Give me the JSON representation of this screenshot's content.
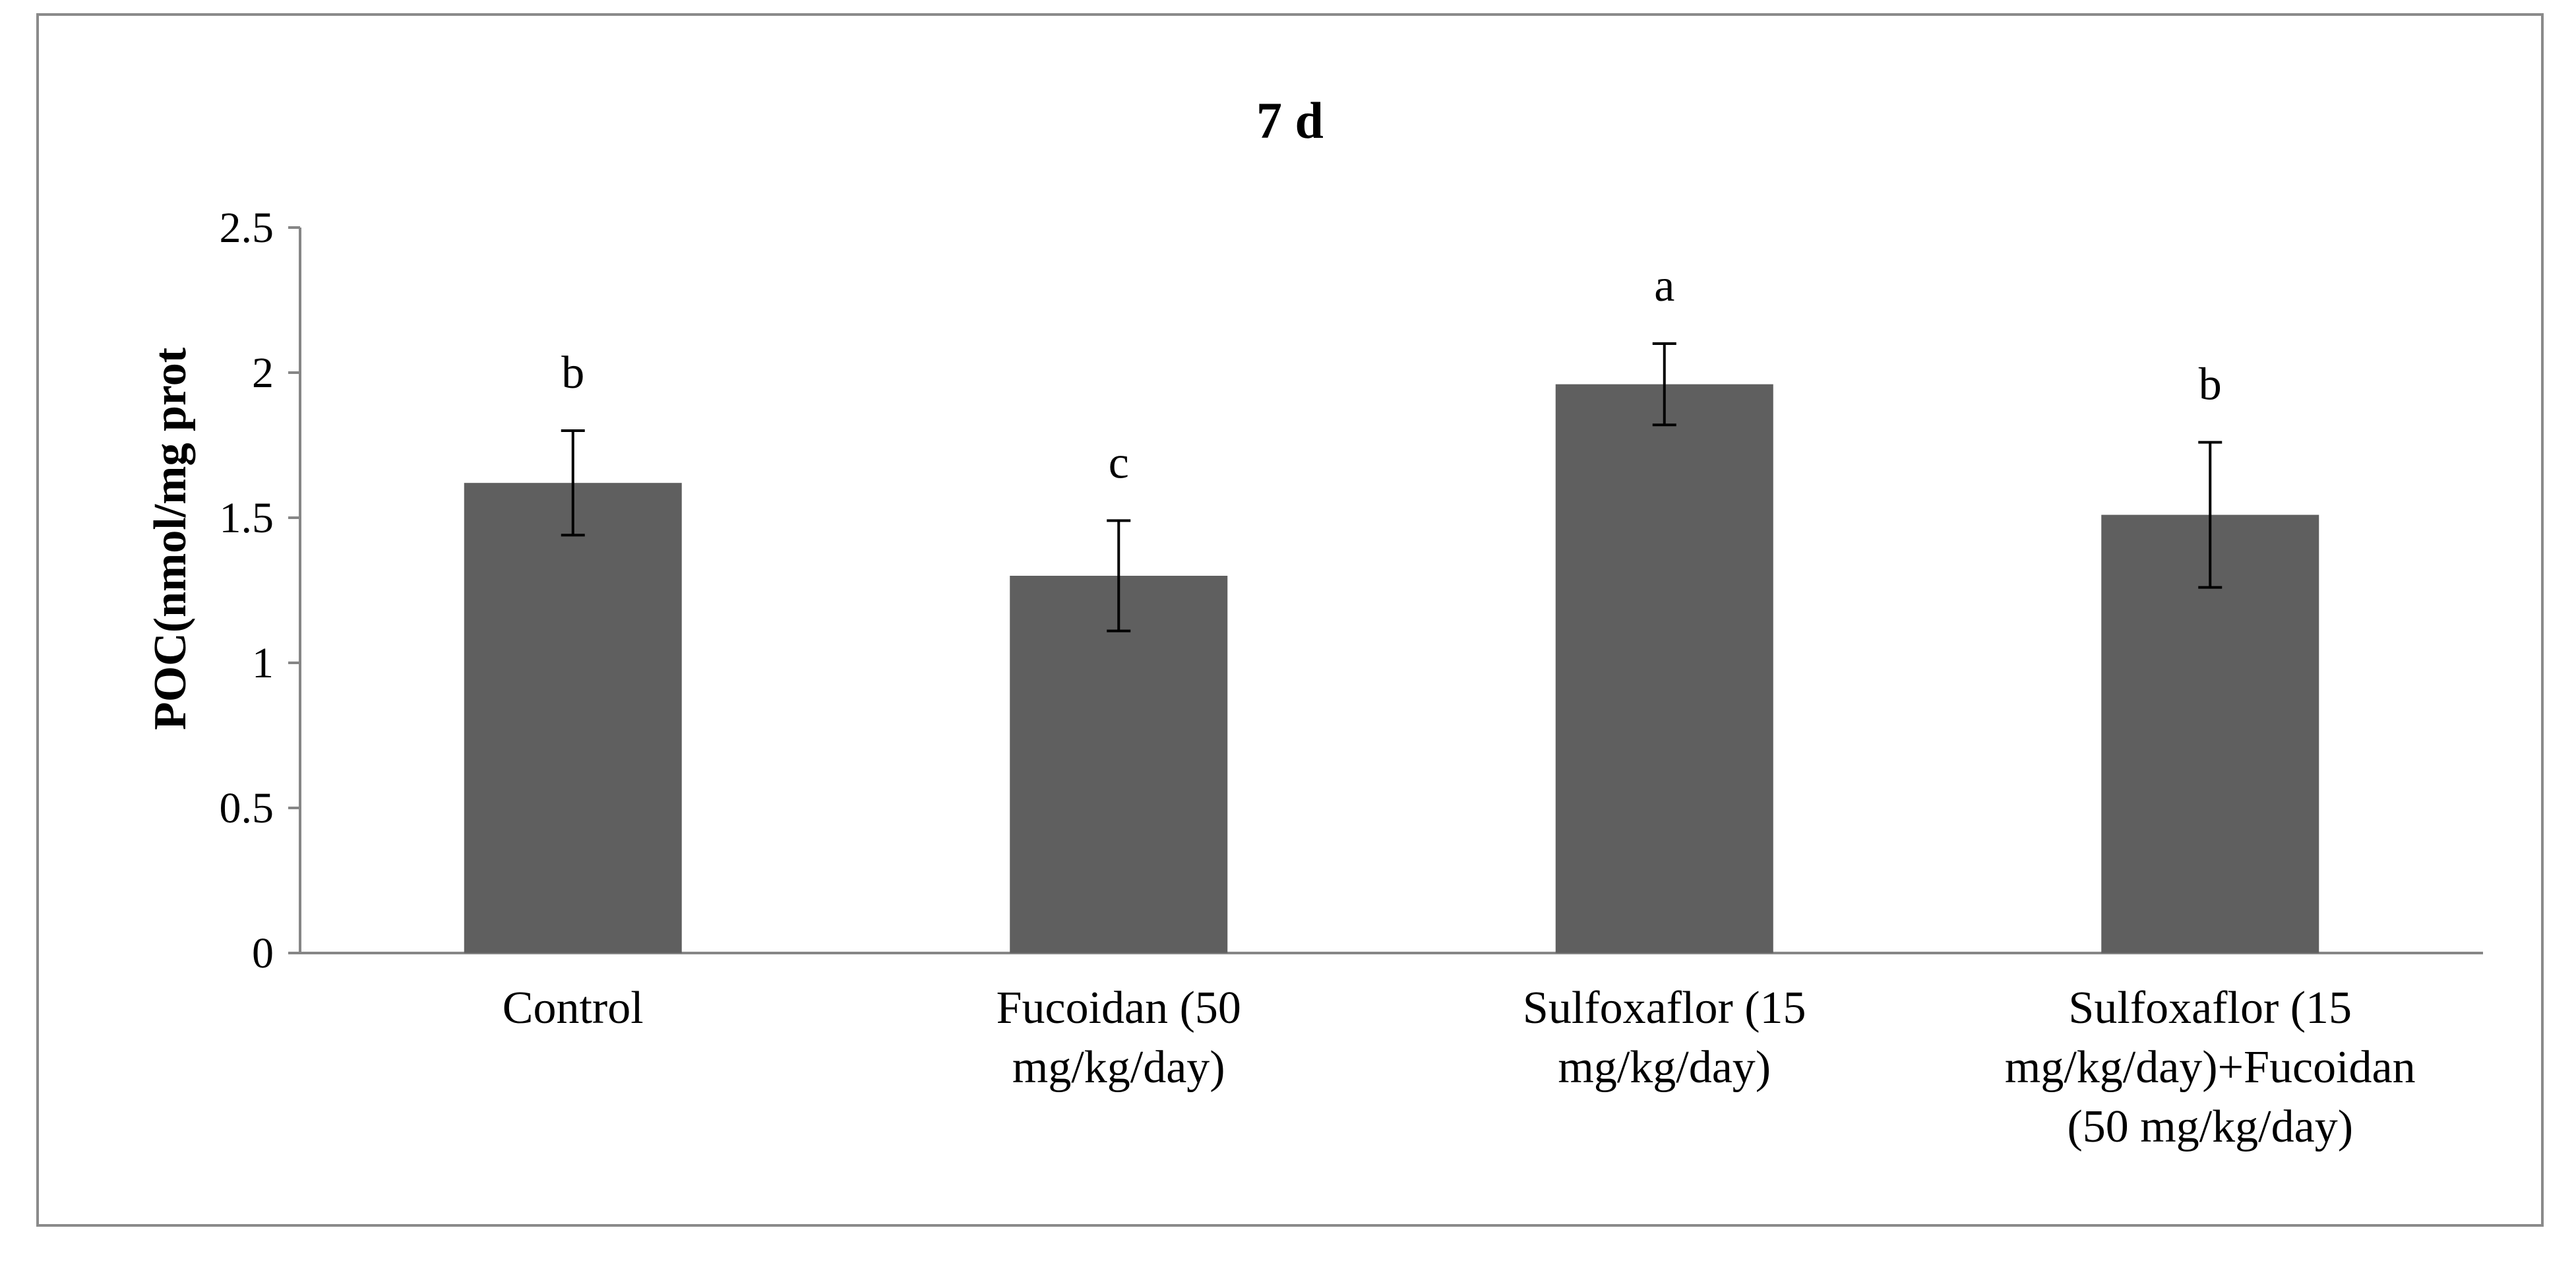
{
  "chart_data": {
    "type": "bar",
    "title": "7 d",
    "xlabel": "",
    "ylabel": "POC(nmol/mg prot",
    "ylim": [
      0,
      2.5
    ],
    "yticks": [
      "0",
      "0.5",
      "1",
      "1.5",
      "2",
      "2.5"
    ],
    "ytick_values": [
      0,
      0.5,
      1,
      1.5,
      2,
      2.5
    ],
    "grid": false,
    "legend": "none",
    "bar_color": "#5f5f5f",
    "categories": [
      [
        "Control"
      ],
      [
        "Fucoidan (50",
        "mg/kg/day)"
      ],
      [
        "Sulfoxaflor (15",
        "mg/kg/day)"
      ],
      [
        "Sulfoxaflor (15",
        "mg/kg/day)+Fucoidan",
        "(50 mg/kg/day)"
      ]
    ],
    "values": [
      1.62,
      1.3,
      1.96,
      1.51
    ],
    "errors": [
      0.18,
      0.19,
      0.14,
      0.25
    ],
    "significance_letters": [
      "b",
      "c",
      "a",
      "b"
    ]
  }
}
